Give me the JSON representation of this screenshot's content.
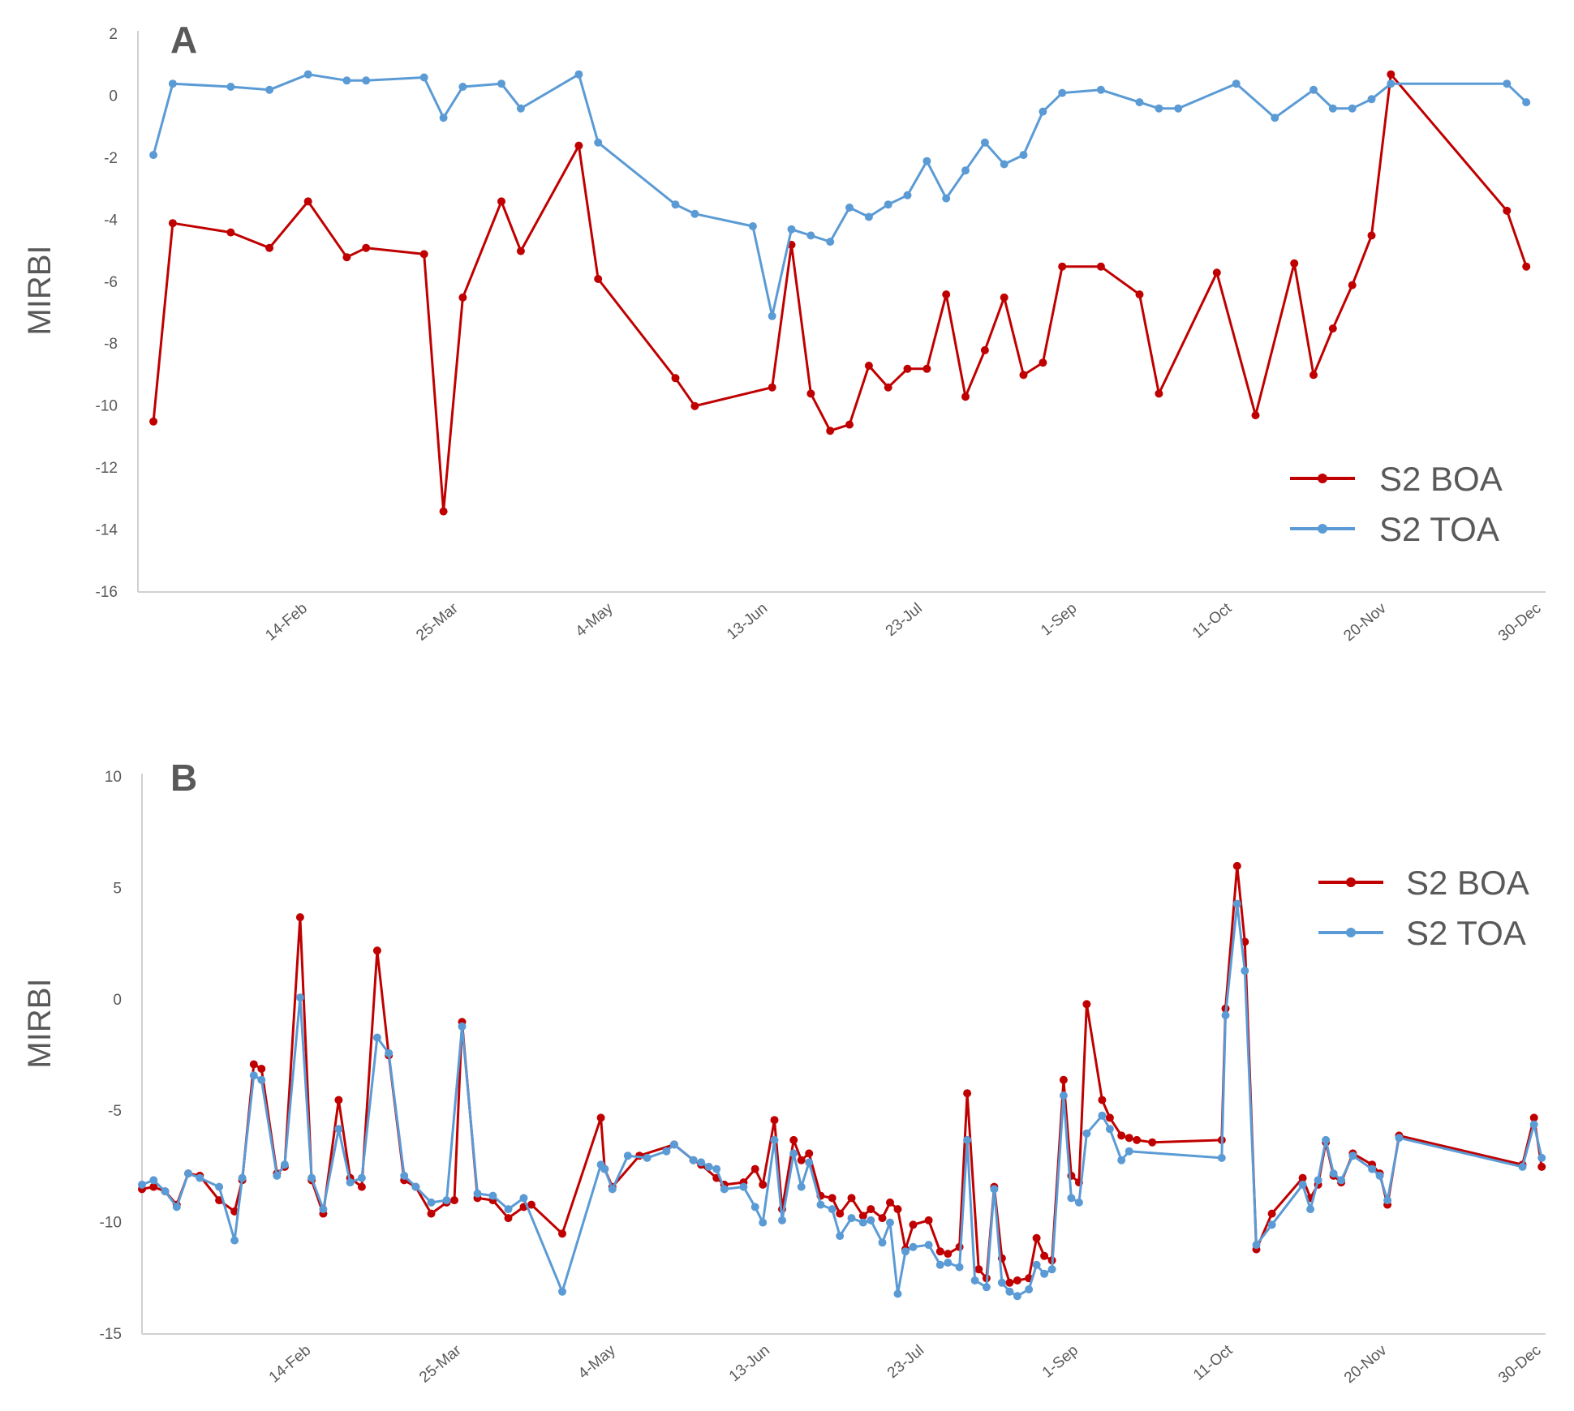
{
  "chart_data": [
    {
      "type": "line",
      "panel_label": "A",
      "ylabel": "MIRBI",
      "ylim": [
        -16,
        2
      ],
      "yticks": [
        2,
        0,
        -2,
        -4,
        -6,
        -8,
        -10,
        -12,
        -14,
        -16
      ],
      "xlim": [
        1,
        365
      ],
      "xticks": [
        {
          "day": 45,
          "label": "14-Feb"
        },
        {
          "day": 84,
          "label": "25-Mar"
        },
        {
          "day": 124,
          "label": "4-May"
        },
        {
          "day": 164,
          "label": "13-Jun"
        },
        {
          "day": 204,
          "label": "23-Jul"
        },
        {
          "day": 244,
          "label": "1-Sep"
        },
        {
          "day": 284,
          "label": "11-Oct"
        },
        {
          "day": 324,
          "label": "20-Nov"
        },
        {
          "day": 364,
          "label": "30-Dec"
        }
      ],
      "legend": {
        "position": "bottom-right"
      },
      "series": [
        {
          "name": "S2 BOA",
          "color": "#c00000",
          "x": [
            5,
            10,
            25,
            35,
            45,
            55,
            60,
            75,
            80,
            85,
            95,
            100,
            115,
            120,
            140,
            145,
            165,
            170,
            175,
            180,
            185,
            190,
            195,
            200,
            205,
            210,
            215,
            220,
            225,
            230,
            235,
            240,
            250,
            260,
            265,
            280,
            290,
            300,
            305,
            310,
            315,
            320,
            325,
            355,
            360
          ],
          "y": [
            -10.5,
            -4.1,
            -4.4,
            -4.9,
            -3.4,
            -5.2,
            -4.9,
            -5.1,
            -13.4,
            -6.5,
            -3.4,
            -5.0,
            -1.6,
            -5.9,
            -9.1,
            -10.0,
            -9.4,
            -4.8,
            -9.6,
            -10.8,
            -10.6,
            -8.7,
            -9.4,
            -8.8,
            -8.8,
            -6.4,
            -9.7,
            -8.2,
            -6.5,
            -9.0,
            -8.6,
            -5.5,
            -5.5,
            -6.4,
            -9.6,
            -5.7,
            -10.3,
            -5.4,
            -9.0,
            -7.5,
            -6.1,
            -4.5,
            0.7,
            -3.7,
            -5.5
          ]
        },
        {
          "name": "S2 TOA",
          "color": "#5b9bd5",
          "x": [
            5,
            10,
            25,
            35,
            45,
            55,
            60,
            75,
            80,
            85,
            95,
            100,
            115,
            120,
            140,
            145,
            160,
            165,
            170,
            175,
            180,
            185,
            190,
            195,
            200,
            205,
            210,
            215,
            220,
            225,
            230,
            235,
            240,
            250,
            260,
            265,
            270,
            285,
            295,
            305,
            310,
            315,
            320,
            325,
            355,
            360
          ],
          "y": [
            -1.9,
            0.4,
            0.3,
            0.2,
            0.7,
            0.5,
            0.5,
            0.6,
            -0.7,
            0.3,
            0.4,
            -0.4,
            0.7,
            -1.5,
            -3.5,
            -3.8,
            -4.2,
            -7.1,
            -4.3,
            -4.5,
            -4.7,
            -3.6,
            -3.9,
            -3.5,
            -3.2,
            -2.1,
            -3.3,
            -2.4,
            -1.5,
            -2.2,
            -1.9,
            -0.5,
            0.1,
            0.2,
            -0.2,
            -0.4,
            -0.4,
            0.4,
            -0.7,
            0.2,
            -0.4,
            -0.4,
            -0.1,
            0.4,
            0.4,
            -0.2
          ]
        }
      ]
    },
    {
      "type": "line",
      "panel_label": "B",
      "ylabel": "MIRBI",
      "ylim": [
        -15,
        10
      ],
      "yticks": [
        10,
        5,
        0,
        -5,
        -10,
        -15
      ],
      "xlim": [
        1,
        365
      ],
      "xticks": [
        {
          "day": 45,
          "label": "14-Feb"
        },
        {
          "day": 84,
          "label": "25-Mar"
        },
        {
          "day": 124,
          "label": "4-May"
        },
        {
          "day": 164,
          "label": "13-Jun"
        },
        {
          "day": 204,
          "label": "23-Jul"
        },
        {
          "day": 244,
          "label": "1-Sep"
        },
        {
          "day": 284,
          "label": "11-Oct"
        },
        {
          "day": 324,
          "label": "20-Nov"
        },
        {
          "day": 364,
          "label": "30-Dec"
        }
      ],
      "legend": {
        "position": "top-right"
      },
      "series": [
        {
          "name": "S2 BOA",
          "color": "#c00000",
          "x": [
            1,
            4,
            7,
            10,
            13,
            16,
            21,
            25,
            27,
            30,
            32,
            36,
            38,
            42,
            45,
            48,
            52,
            55,
            58,
            62,
            65,
            69,
            72,
            76,
            80,
            82,
            84,
            88,
            92,
            96,
            100,
            102,
            110,
            120,
            121,
            123,
            130,
            139,
            144,
            146,
            150,
            152,
            157,
            160,
            162,
            165,
            167,
            170,
            172,
            174,
            177,
            180,
            182,
            185,
            188,
            190,
            193,
            195,
            197,
            199,
            201,
            205,
            208,
            210,
            213,
            215,
            218,
            220,
            222,
            224,
            226,
            228,
            231,
            233,
            235,
            237,
            240,
            242,
            244,
            246,
            250,
            252,
            255,
            257,
            259,
            263,
            281,
            282,
            285,
            287,
            290,
            294,
            302,
            304,
            306,
            308,
            310,
            312,
            315,
            320,
            322,
            324,
            327,
            359,
            362,
            364
          ],
          "y": [
            -8.5,
            -8.4,
            -8.6,
            -9.2,
            -7.8,
            -7.9,
            -9.0,
            -9.5,
            -8.1,
            -2.9,
            -3.1,
            -7.8,
            -7.5,
            3.7,
            -8.1,
            -9.6,
            -4.5,
            -8.0,
            -8.4,
            2.2,
            -2.5,
            -8.1,
            -8.4,
            -9.6,
            -9.1,
            -9.0,
            -1.0,
            -8.9,
            -9.0,
            -9.8,
            -9.3,
            -9.2,
            -10.5,
            -5.3,
            -7.6,
            -8.4,
            -7.0,
            -6.5,
            -7.2,
            -7.4,
            -8.0,
            -8.3,
            -8.2,
            -7.6,
            -8.3,
            -5.4,
            -9.4,
            -6.3,
            -7.2,
            -6.9,
            -8.8,
            -8.9,
            -9.6,
            -8.9,
            -9.7,
            -9.4,
            -9.8,
            -9.1,
            -9.4,
            -11.2,
            -10.1,
            -9.9,
            -11.3,
            -11.4,
            -11.1,
            -4.2,
            -12.1,
            -12.5,
            -8.4,
            -11.6,
            -12.7,
            -12.6,
            -12.5,
            -10.7,
            -11.5,
            -11.7,
            -3.6,
            -7.9,
            -8.2,
            -0.2,
            -4.5,
            -5.3,
            -6.1,
            -6.2,
            -6.3,
            -6.4,
            -6.3,
            -0.4,
            6.0,
            2.6,
            -11.2,
            -9.6,
            -8.0,
            -8.9,
            -8.3,
            -6.4,
            -7.9,
            -8.2,
            -6.9,
            -7.4,
            -7.8,
            -9.2,
            -6.1,
            -7.4,
            -5.3,
            -7.5
          ]
        },
        {
          "name": "S2 TOA",
          "color": "#5b9bd5",
          "x": [
            1,
            4,
            7,
            10,
            13,
            16,
            21,
            25,
            27,
            30,
            32,
            36,
            38,
            42,
            45,
            48,
            52,
            55,
            58,
            62,
            65,
            69,
            72,
            76,
            80,
            84,
            88,
            92,
            96,
            100,
            110,
            120,
            121,
            123,
            127,
            132,
            137,
            139,
            144,
            146,
            148,
            150,
            152,
            157,
            160,
            162,
            165,
            167,
            170,
            172,
            174,
            177,
            180,
            182,
            185,
            188,
            190,
            193,
            195,
            197,
            199,
            201,
            205,
            208,
            210,
            213,
            215,
            217,
            220,
            222,
            224,
            226,
            228,
            231,
            233,
            235,
            237,
            240,
            242,
            244,
            246,
            250,
            252,
            255,
            257,
            281,
            282,
            285,
            287,
            290,
            294,
            302,
            304,
            306,
            308,
            310,
            312,
            315,
            320,
            322,
            324,
            327,
            359,
            362,
            364
          ],
          "y": [
            -8.3,
            -8.1,
            -8.6,
            -9.3,
            -7.8,
            -8.0,
            -8.4,
            -10.8,
            -8.0,
            -3.4,
            -3.6,
            -7.9,
            -7.4,
            0.1,
            -8.0,
            -9.4,
            -5.8,
            -8.2,
            -8.0,
            -1.7,
            -2.4,
            -7.9,
            -8.4,
            -9.1,
            -9.0,
            -1.2,
            -8.7,
            -8.8,
            -9.4,
            -8.9,
            -13.1,
            -7.4,
            -7.6,
            -8.5,
            -7.0,
            -7.1,
            -6.8,
            -6.5,
            -7.2,
            -7.3,
            -7.5,
            -7.6,
            -8.5,
            -8.4,
            -9.3,
            -10.0,
            -6.3,
            -9.9,
            -6.9,
            -8.4,
            -7.3,
            -9.2,
            -9.4,
            -10.6,
            -9.8,
            -10.0,
            -9.9,
            -10.9,
            -10.0,
            -13.2,
            -11.3,
            -11.1,
            -11.0,
            -11.9,
            -11.8,
            -12.0,
            -6.3,
            -12.6,
            -12.9,
            -8.5,
            -12.7,
            -13.1,
            -13.3,
            -13.0,
            -11.9,
            -12.3,
            -12.1,
            -4.3,
            -8.9,
            -9.1,
            -6.0,
            -5.2,
            -5.8,
            -7.2,
            -6.8,
            -7.1,
            -0.7,
            4.3,
            1.3,
            -11.0,
            -10.1,
            -8.3,
            -9.4,
            -8.1,
            -6.3,
            -7.8,
            -8.1,
            -7.0,
            -7.6,
            -7.9,
            -9.0,
            -6.2,
            -7.5,
            -5.6,
            -7.1
          ]
        }
      ]
    }
  ]
}
